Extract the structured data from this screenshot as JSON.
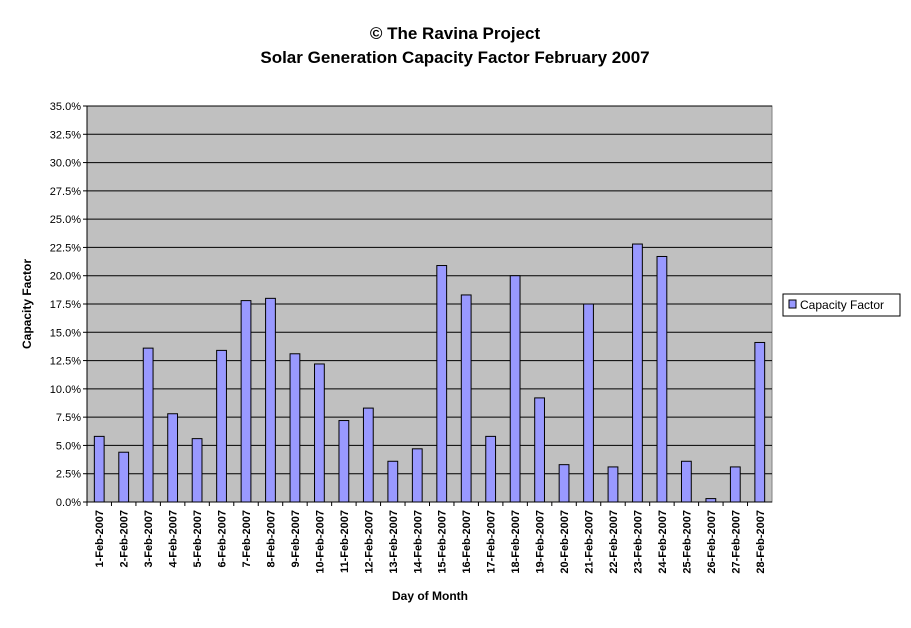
{
  "chart_data": {
    "type": "bar",
    "title": "© The Ravina Project",
    "subtitle": "Solar Generation Capacity Factor February 2007",
    "xlabel": "Day of Month",
    "ylabel": "Capacity Factor",
    "ylim": [
      0,
      35
    ],
    "yticks": [
      "0.0%",
      "2.5%",
      "5.0%",
      "7.5%",
      "10.0%",
      "12.5%",
      "15.0%",
      "17.5%",
      "20.0%",
      "22.5%",
      "25.0%",
      "27.5%",
      "30.0%",
      "32.5%",
      "35.0%"
    ],
    "grid": true,
    "legend_position": "right",
    "categories": [
      "1-Feb-2007",
      "2-Feb-2007",
      "3-Feb-2007",
      "4-Feb-2007",
      "5-Feb-2007",
      "6-Feb-2007",
      "7-Feb-2007",
      "8-Feb-2007",
      "9-Feb-2007",
      "10-Feb-2007",
      "11-Feb-2007",
      "12-Feb-2007",
      "13-Feb-2007",
      "14-Feb-2007",
      "15-Feb-2007",
      "16-Feb-2007",
      "17-Feb-2007",
      "18-Feb-2007",
      "19-Feb-2007",
      "20-Feb-2007",
      "21-Feb-2007",
      "22-Feb-2007",
      "23-Feb-2007",
      "24-Feb-2007",
      "25-Feb-2007",
      "26-Feb-2007",
      "27-Feb-2007",
      "28-Feb-2007"
    ],
    "series": [
      {
        "name": "Capacity Factor",
        "color": "#9999FF",
        "values": [
          5.8,
          4.4,
          13.6,
          7.8,
          5.6,
          13.4,
          17.8,
          18.0,
          13.1,
          12.2,
          7.2,
          8.3,
          3.6,
          4.7,
          20.9,
          18.3,
          5.8,
          20.0,
          9.2,
          3.3,
          17.5,
          3.1,
          22.8,
          21.7,
          3.6,
          0.3,
          3.1,
          14.1
        ]
      }
    ],
    "colors": {
      "plot_background": "#C0C0C0",
      "gridline": "#000000",
      "bar_fill": "#9999FF"
    }
  }
}
